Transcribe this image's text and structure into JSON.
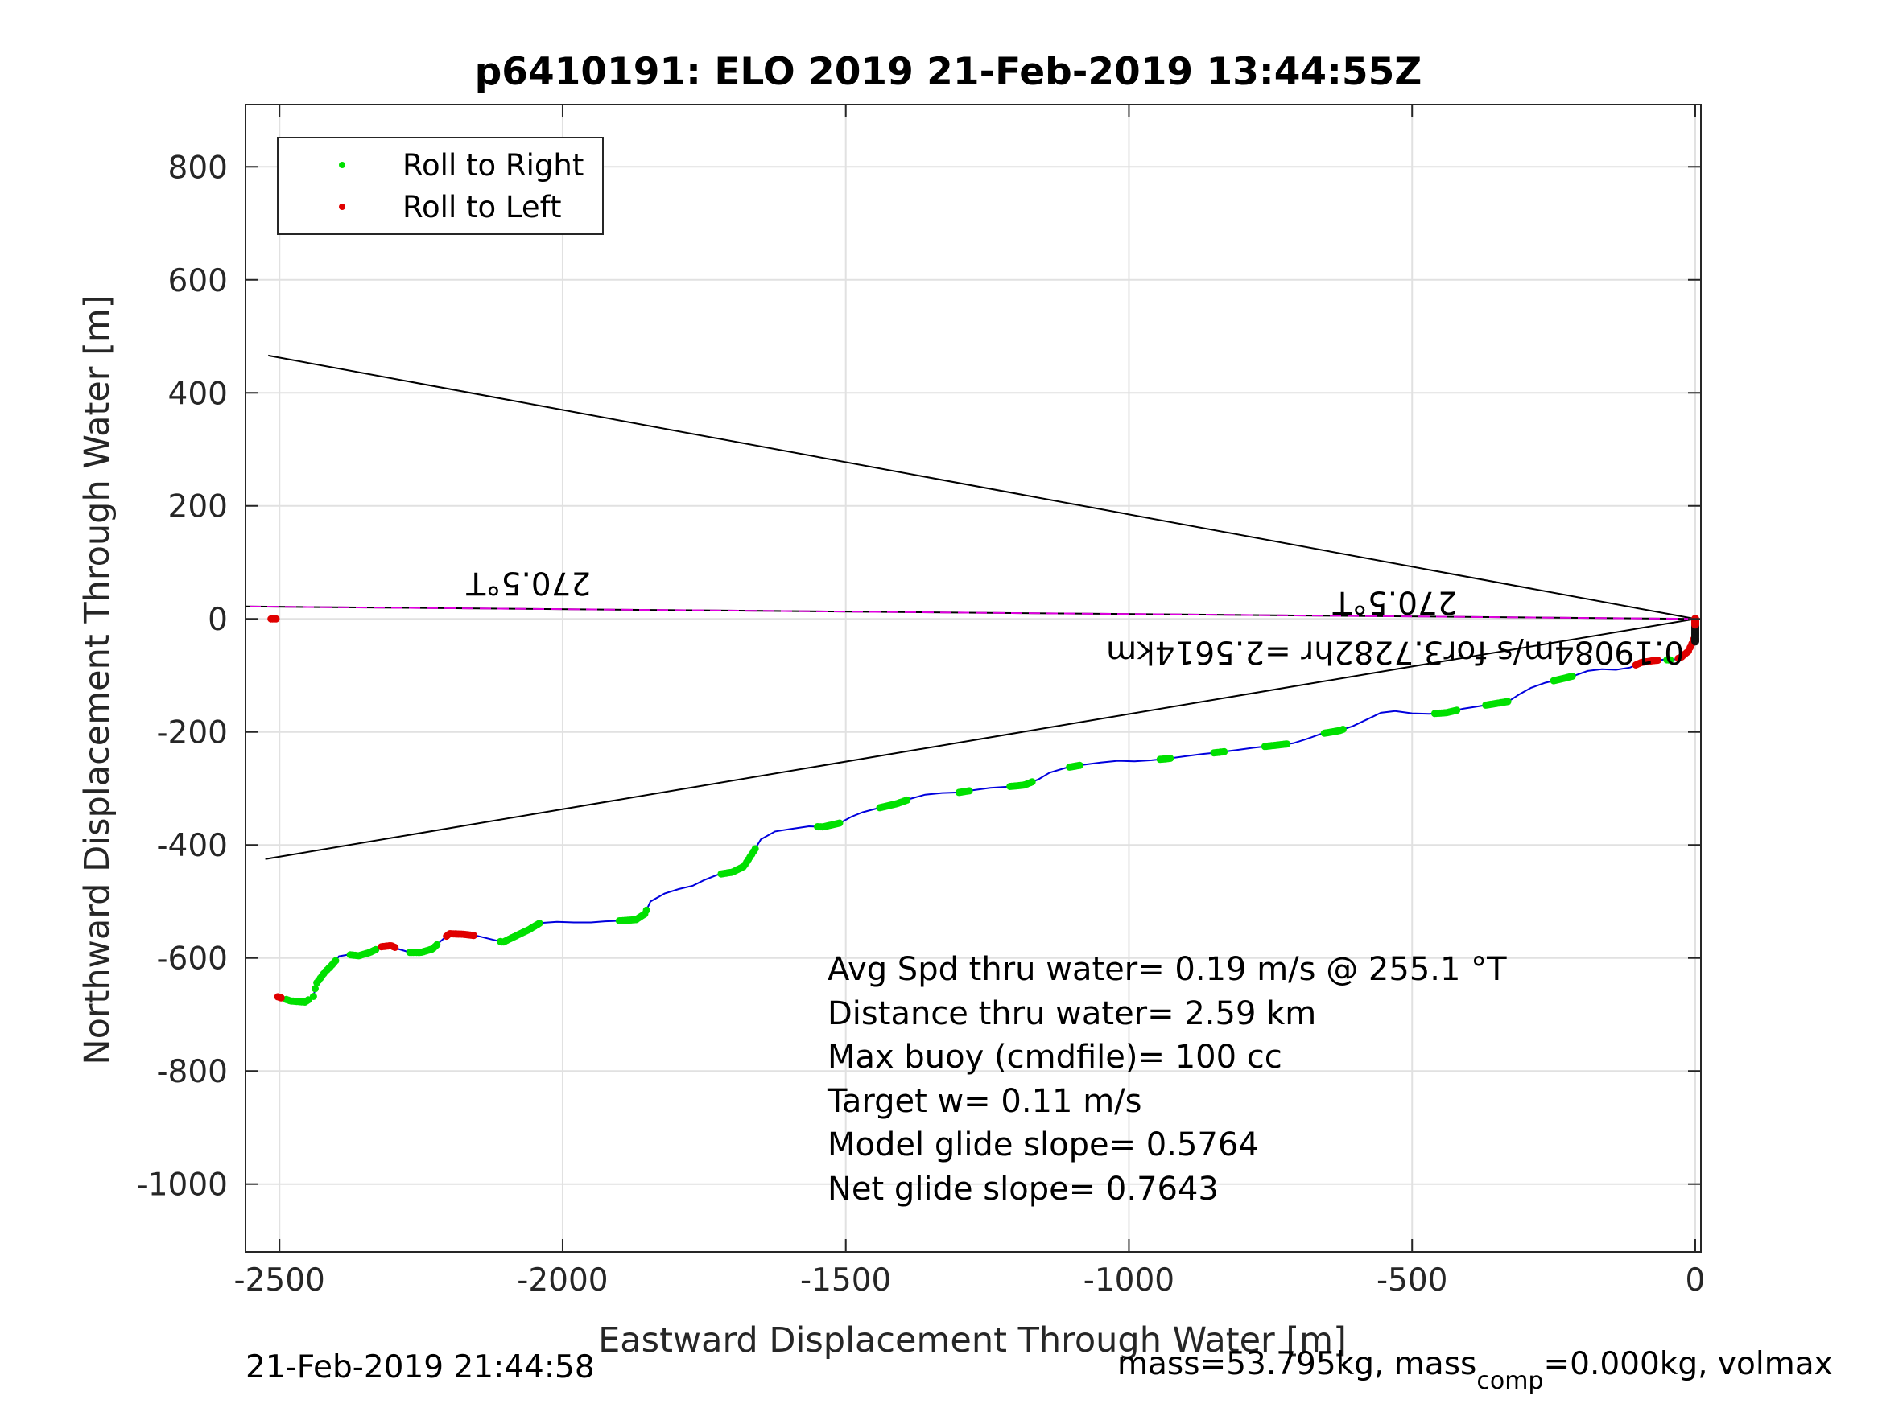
{
  "chart_data": {
    "type": "scatter",
    "title": "p6410191: ELO 2019 21-Feb-2019 13:44:55Z",
    "xlabel": "Eastward Displacement Through Water [m]",
    "ylabel": "Northward Displacement Through Water [m]",
    "xlim": [
      -2560,
      10
    ],
    "ylim": [
      -1120,
      910
    ],
    "x_ticks": [
      -2500,
      -2000,
      -1500,
      -1000,
      -500,
      0
    ],
    "y_ticks": [
      800,
      600,
      400,
      200,
      0,
      -200,
      -400,
      -600,
      -800,
      -1000
    ],
    "grid": true,
    "legend_position": "top-left",
    "legend": [
      {
        "label": "Roll to Right",
        "color": "#00e000"
      },
      {
        "label": "Roll to Left",
        "color": "#e00000"
      }
    ],
    "track_color": "#0000dd",
    "track": [
      [
        -2505,
        -668
      ],
      [
        -2480,
        -676
      ],
      [
        -2455,
        -678
      ],
      [
        -2440,
        -668
      ],
      [
        -2435,
        -645
      ],
      [
        -2420,
        -625
      ],
      [
        -2405,
        -610
      ],
      [
        -2395,
        -597
      ],
      [
        -2378,
        -594
      ],
      [
        -2360,
        -596
      ],
      [
        -2340,
        -590
      ],
      [
        -2320,
        -580
      ],
      [
        -2303,
        -578
      ],
      [
        -2290,
        -584
      ],
      [
        -2270,
        -590
      ],
      [
        -2250,
        -590
      ],
      [
        -2230,
        -584
      ],
      [
        -2215,
        -570
      ],
      [
        -2200,
        -557
      ],
      [
        -2175,
        -558
      ],
      [
        -2150,
        -561
      ],
      [
        -2130,
        -566
      ],
      [
        -2105,
        -572
      ],
      [
        -2085,
        -562
      ],
      [
        -2060,
        -550
      ],
      [
        -2040,
        -538
      ],
      [
        -2010,
        -536
      ],
      [
        -1980,
        -537
      ],
      [
        -1950,
        -537
      ],
      [
        -1925,
        -535
      ],
      [
        -1895,
        -534
      ],
      [
        -1870,
        -532
      ],
      [
        -1855,
        -522
      ],
      [
        -1845,
        -500
      ],
      [
        -1820,
        -486
      ],
      [
        -1795,
        -478
      ],
      [
        -1770,
        -472
      ],
      [
        -1750,
        -462
      ],
      [
        -1725,
        -452
      ],
      [
        -1700,
        -448
      ],
      [
        -1680,
        -438
      ],
      [
        -1665,
        -415
      ],
      [
        -1650,
        -390
      ],
      [
        -1625,
        -376
      ],
      [
        -1600,
        -372
      ],
      [
        -1565,
        -367
      ],
      [
        -1540,
        -368
      ],
      [
        -1510,
        -361
      ],
      [
        -1490,
        -350
      ],
      [
        -1470,
        -342
      ],
      [
        -1440,
        -334
      ],
      [
        -1410,
        -327
      ],
      [
        -1385,
        -318
      ],
      [
        -1360,
        -311
      ],
      [
        -1330,
        -308
      ],
      [
        -1300,
        -307
      ],
      [
        -1275,
        -303
      ],
      [
        -1245,
        -299
      ],
      [
        -1215,
        -297
      ],
      [
        -1185,
        -294
      ],
      [
        -1160,
        -284
      ],
      [
        -1140,
        -272
      ],
      [
        -1110,
        -263
      ],
      [
        -1080,
        -258
      ],
      [
        -1050,
        -254
      ],
      [
        -1020,
        -251
      ],
      [
        -990,
        -252
      ],
      [
        -960,
        -250
      ],
      [
        -930,
        -247
      ],
      [
        -900,
        -243
      ],
      [
        -870,
        -239
      ],
      [
        -840,
        -236
      ],
      [
        -810,
        -232
      ],
      [
        -780,
        -228
      ],
      [
        -745,
        -224
      ],
      [
        -710,
        -220
      ],
      [
        -685,
        -212
      ],
      [
        -660,
        -203
      ],
      [
        -630,
        -198
      ],
      [
        -605,
        -190
      ],
      [
        -580,
        -178
      ],
      [
        -555,
        -166
      ],
      [
        -530,
        -163
      ],
      [
        -500,
        -167
      ],
      [
        -470,
        -168
      ],
      [
        -440,
        -166
      ],
      [
        -410,
        -159
      ],
      [
        -385,
        -155
      ],
      [
        -360,
        -151
      ],
      [
        -330,
        -146
      ],
      [
        -310,
        -133
      ],
      [
        -290,
        -122
      ],
      [
        -265,
        -113
      ],
      [
        -240,
        -107
      ],
      [
        -215,
        -101
      ],
      [
        -190,
        -92
      ],
      [
        -165,
        -89
      ],
      [
        -140,
        -90
      ],
      [
        -115,
        -86
      ],
      [
        -95,
        -77
      ],
      [
        -75,
        -74
      ],
      [
        -55,
        -72
      ],
      [
        -40,
        -73
      ],
      [
        -25,
        -68
      ],
      [
        -12,
        -57
      ],
      [
        -5,
        -42
      ],
      [
        0,
        -28
      ],
      [
        0,
        -12
      ],
      [
        0,
        0
      ]
    ],
    "roll_right_segments": [
      [
        -2488,
        -2447
      ],
      [
        -2440,
        -2400
      ],
      [
        -2375,
        -2330
      ],
      [
        -2270,
        -2220
      ],
      [
        -2110,
        -2040
      ],
      [
        -1900,
        -1850
      ],
      [
        -1720,
        -1660
      ],
      [
        -1550,
        -1510
      ],
      [
        -1440,
        -1390
      ],
      [
        -1300,
        -1280
      ],
      [
        -1210,
        -1170
      ],
      [
        -1105,
        -1085
      ],
      [
        -945,
        -925
      ],
      [
        -850,
        -830
      ],
      [
        -760,
        -720
      ],
      [
        -655,
        -620
      ],
      [
        -460,
        -420
      ],
      [
        -370,
        -330
      ],
      [
        -250,
        -215
      ],
      [
        -50,
        -42
      ]
    ],
    "roll_left_segments": [
      [
        -2515,
        -2495
      ],
      [
        -2320,
        -2295
      ],
      [
        -2205,
        -2155
      ],
      [
        -105,
        -65
      ],
      [
        -30,
        -2
      ]
    ],
    "fan_lines": [
      {
        "from": [
          0,
          0
        ],
        "to": [
          -2520,
          466
        ],
        "color": "#000000"
      },
      {
        "from": [
          0,
          0
        ],
        "to": [
          -2525,
          -425
        ],
        "color": "#000000"
      },
      {
        "from": [
          0,
          0
        ],
        "to": [
          -2560,
          22
        ],
        "color": "#000000"
      }
    ],
    "heading_line": {
      "from": [
        0,
        0
      ],
      "to": [
        -2560,
        22
      ],
      "color": "#e000e0"
    },
    "annotations": [
      {
        "text": "270.5°T",
        "x": -2060,
        "y": 82,
        "rotation": 180
      },
      {
        "text": "270.5°T",
        "x": -530,
        "y": 48,
        "rotation": 180
      },
      {
        "text": "0.19084m/s for3.7282hr =2.5614km",
        "x": -530,
        "y": -40,
        "rotation": 180
      }
    ],
    "stats": [
      "Avg Spd thru water=  0.19 m/s @ 255.1 °T",
      "Distance thru water=  2.59 km",
      "Max buoy (cmdfile)= 100 cc",
      "Target w= 0.11 m/s",
      "Model glide slope= 0.5764",
      "Net glide slope= 0.7643"
    ],
    "footer_left": "21-Feb-2019 21:44:58",
    "footer_right_pre": "mass=53.795kg, mass",
    "footer_right_sub": "comp",
    "footer_right_post": "=0.000kg, volmax"
  }
}
